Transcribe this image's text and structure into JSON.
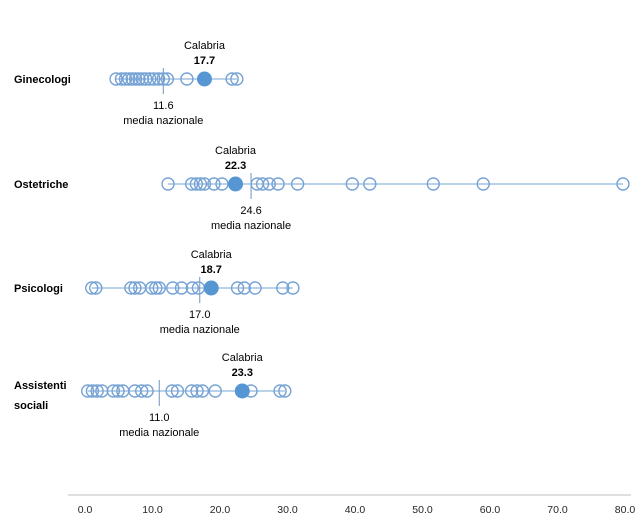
{
  "chart_data": {
    "type": "scatter",
    "subtype": "horizontal-dot-strip-plot",
    "title": "",
    "x_axis": {
      "min": 0,
      "max": 80,
      "tick_step": 10,
      "tick_labels": [
        "0.0",
        "10.0",
        "20.0",
        "30.0",
        "40.0",
        "50.0",
        "60.0",
        "70.0",
        "80.0"
      ]
    },
    "rows": [
      {
        "label": "Ginecologi",
        "label_lines": [
          "Ginecologi"
        ],
        "open_points": [
          4.6,
          5.4,
          6.0,
          6.5,
          7.0,
          7.5,
          8.0,
          8.5,
          9.0,
          9.6,
          10.2,
          10.9,
          11.6,
          12.2,
          15.1,
          21.8,
          22.5
        ],
        "highlight": {
          "name": "Calabria",
          "value": 17.7,
          "value_label": "17.7"
        },
        "mean": {
          "label": "media nazionale",
          "value": 11.6,
          "value_label": "11.6"
        }
      },
      {
        "label": "Ostetriche",
        "label_lines": [
          "Ostetriche"
        ],
        "open_points": [
          12.3,
          15.8,
          16.5,
          17.1,
          17.7,
          19.1,
          20.3,
          25.5,
          26.3,
          27.3,
          28.6,
          31.5,
          39.6,
          42.2,
          51.6,
          59.0,
          79.7
        ],
        "highlight": {
          "name": "Calabria",
          "value": 22.3,
          "value_label": "22.3"
        },
        "mean": {
          "label": "media nazionale",
          "value": 24.6,
          "value_label": "24.6"
        }
      },
      {
        "label": "Psicologi",
        "label_lines": [
          "Psicologi"
        ],
        "open_points": [
          1.0,
          1.6,
          6.8,
          7.4,
          8.1,
          9.9,
          10.5,
          11.0,
          13.0,
          14.3,
          15.9,
          16.8,
          22.6,
          23.6,
          25.2,
          29.3,
          30.8
        ],
        "highlight": {
          "name": "Calabria",
          "value": 18.7,
          "value_label": "18.7"
        },
        "mean": {
          "label": "media nazionale",
          "value": 17.0,
          "value_label": "17.0"
        }
      },
      {
        "label": "Assistenti sociali",
        "label_lines": [
          "Assistenti",
          "sociali"
        ],
        "open_points": [
          0.4,
          1.1,
          1.8,
          2.5,
          4.2,
          4.9,
          5.6,
          7.4,
          8.4,
          9.2,
          12.9,
          13.7,
          15.8,
          16.6,
          17.4,
          19.3,
          24.6,
          28.9,
          29.6
        ],
        "highlight": {
          "name": "Calabria",
          "value": 23.3,
          "value_label": "23.3"
        },
        "mean": {
          "label": "media nazionale",
          "value": 11.0,
          "value_label": "11.0"
        }
      }
    ],
    "colors": {
      "open_marker": "#76A3D4",
      "filled_marker": "#5596D3",
      "connector_line": "#76A3D4",
      "mean_line": "#6D95BE",
      "axis_line": "#BFBFBF",
      "text": "#000000",
      "tick_text": "#262626"
    },
    "layout_hints": {
      "grid": false,
      "legend": "none",
      "highlight_label_position": "above-point",
      "mean_label_position": "below-mean-line"
    }
  }
}
